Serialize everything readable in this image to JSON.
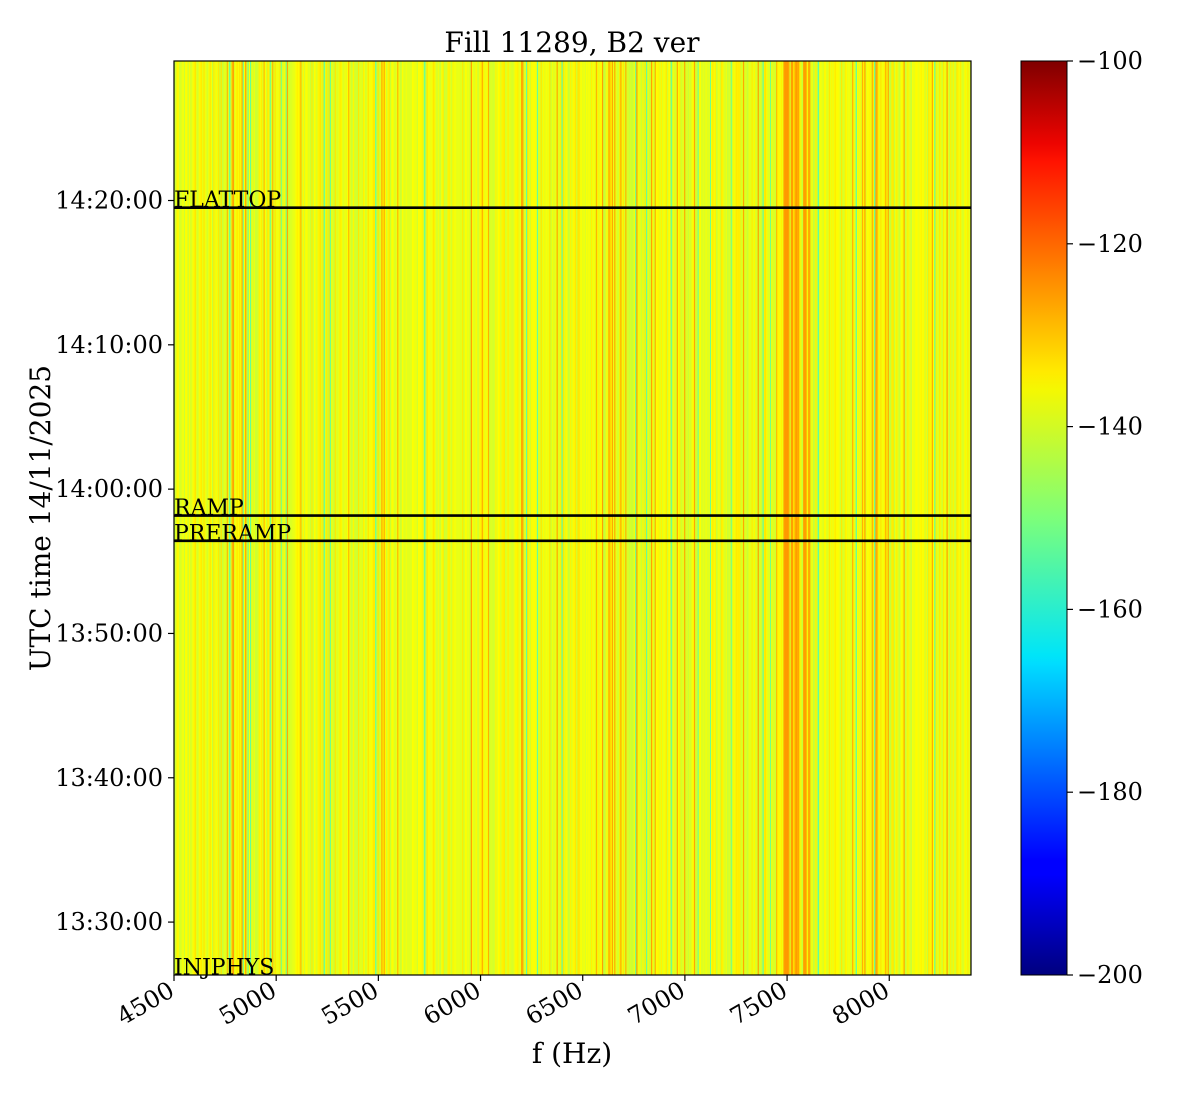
{
  "chart_data": {
    "type": "heatmap",
    "title": "Fill 11289, B2 ver",
    "xlabel": "f (Hz)",
    "ylabel": "UTC time 14/11/2025",
    "xlim": [
      4500,
      8400
    ],
    "ylim": [
      "13:26:20",
      "14:29:40"
    ],
    "x_ticks": [
      4500,
      5000,
      5500,
      6000,
      6500,
      7000,
      7500,
      8000
    ],
    "x_tick_labels": [
      "4500",
      "5000",
      "5500",
      "6000",
      "6500",
      "7000",
      "7500",
      "8000"
    ],
    "y_ticks": [
      "13:30:00",
      "13:40:00",
      "13:50:00",
      "14:00:00",
      "14:10:00",
      "14:20:00"
    ],
    "colorbar": {
      "colormap": "jet",
      "min": -200,
      "max": -100,
      "ticks": [
        -100,
        -120,
        -140,
        -160,
        -180,
        -200
      ],
      "tick_labels": [
        "−100",
        "−120",
        "−140",
        "−160",
        "−180",
        "−200"
      ]
    },
    "events": [
      {
        "name": "INJPHYS",
        "time": "13:26:20"
      },
      {
        "name": "PRERAMP",
        "time": "13:56:25"
      },
      {
        "name": "RAMP",
        "time": "13:58:10"
      },
      {
        "name": "FLATTOP",
        "time": "14:19:30"
      }
    ],
    "event_line_color": "#000000",
    "value_description": "vertical stripes constant in time; values mostly between -145 and -130, stronger bands near 7500-7600 Hz and 6600-6700 Hz"
  }
}
